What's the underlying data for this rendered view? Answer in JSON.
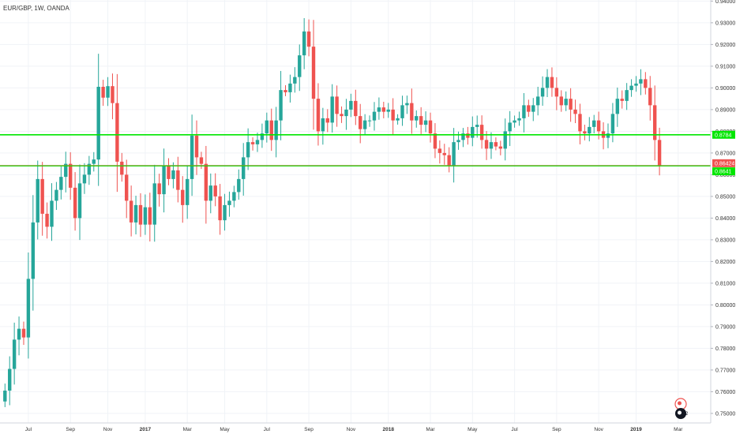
{
  "symbol": "EUR/GBP, 1W, OANDA",
  "colors": {
    "up": "#26a69a",
    "down": "#ef5350",
    "level_line": "#00e600",
    "current_price": "#ef5350",
    "grid": "#f0f3f7"
  },
  "icons": [
    "tradingview-logo-icon"
  ],
  "chart_data": {
    "type": "candlestick",
    "ylim": [
      0.7456,
      0.9405
    ],
    "x_ticks": [
      {
        "label": "Jul",
        "index": 5,
        "bold": false
      },
      {
        "label": "Sep",
        "index": 14,
        "bold": false
      },
      {
        "label": "Nov",
        "index": 22,
        "bold": false
      },
      {
        "label": "2017",
        "index": 30,
        "bold": true
      },
      {
        "label": "Mar",
        "index": 39,
        "bold": false
      },
      {
        "label": "May",
        "index": 47,
        "bold": false
      },
      {
        "label": "Jul",
        "index": 56,
        "bold": false
      },
      {
        "label": "Sep",
        "index": 65,
        "bold": false
      },
      {
        "label": "Nov",
        "index": 74,
        "bold": false
      },
      {
        "label": "2018",
        "index": 82,
        "bold": true
      },
      {
        "label": "Mar",
        "index": 91,
        "bold": false
      },
      {
        "label": "May",
        "index": 100,
        "bold": false
      },
      {
        "label": "Jul",
        "index": 109,
        "bold": false
      },
      {
        "label": "Sep",
        "index": 118,
        "bold": false
      },
      {
        "label": "Nov",
        "index": 127,
        "bold": false
      },
      {
        "label": "2019",
        "index": 135,
        "bold": true
      },
      {
        "label": "Mar",
        "index": 144,
        "bold": false
      }
    ],
    "y_ticks": [
      "0.94000",
      "0.93000",
      "0.92000",
      "0.91000",
      "0.90000",
      "0.89000",
      "0.88000",
      "0.87000",
      "0.86000",
      "0.85000",
      "0.84000",
      "0.83000",
      "0.82000",
      "0.81000",
      "0.80000",
      "0.79000",
      "0.78000",
      "0.77000",
      "0.76000",
      "0.75000"
    ],
    "y_tick_values": [
      0.94,
      0.93,
      0.92,
      0.91,
      0.9,
      0.89,
      0.88,
      0.87,
      0.86,
      0.85,
      0.84,
      0.83,
      0.82,
      0.81,
      0.8,
      0.79,
      0.78,
      0.77,
      0.76,
      0.75
    ],
    "levels": [
      {
        "value": 0.8784,
        "label": "0.8784"
      },
      {
        "value": 0.8641,
        "label": "0.8641"
      }
    ],
    "current_price": {
      "value": 0.8642,
      "label": "0.86424"
    },
    "closes": [
      0.7605,
      0.7705,
      0.784,
      0.789,
      0.785,
      0.812,
      0.838,
      0.858,
      0.842,
      0.836,
      0.848,
      0.853,
      0.859,
      0.865,
      0.854,
      0.84,
      0.856,
      0.86,
      0.865,
      0.867,
      0.9005,
      0.8955,
      0.9008,
      0.893,
      0.866,
      0.86,
      0.848,
      0.838,
      0.846,
      0.837,
      0.845,
      0.837,
      0.856,
      0.851,
      0.864,
      0.858,
      0.862,
      0.853,
      0.846,
      0.858,
      0.878,
      0.868,
      0.865,
      0.848,
      0.855,
      0.85,
      0.839,
      0.846,
      0.848,
      0.852,
      0.858,
      0.868,
      0.875,
      0.874,
      0.876,
      0.879,
      0.885,
      0.876,
      0.885,
      0.899,
      0.898,
      0.902,
      0.905,
      0.915,
      0.926,
      0.919,
      0.895,
      0.88,
      0.886,
      0.884,
      0.896,
      0.888,
      0.887,
      0.89,
      0.894,
      0.887,
      0.881,
      0.885,
      0.885,
      0.889,
      0.891,
      0.889,
      0.89,
      0.885,
      0.886,
      0.892,
      0.893,
      0.885,
      0.887,
      0.883,
      0.885,
      0.879,
      0.872,
      0.87,
      0.869,
      0.864,
      0.875,
      0.876,
      0.879,
      0.877,
      0.882,
      0.883,
      0.876,
      0.872,
      0.875,
      0.873,
      0.872,
      0.88,
      0.884,
      0.885,
      0.886,
      0.892,
      0.889,
      0.892,
      0.896,
      0.9,
      0.905,
      0.9,
      0.896,
      0.892,
      0.895,
      0.89,
      0.888,
      0.88,
      0.879,
      0.882,
      0.885,
      0.88,
      0.877,
      0.879,
      0.888,
      0.895,
      0.894,
      0.899,
      0.901,
      0.902,
      0.904,
      0.9,
      0.892,
      0.876,
      0.8642
    ],
    "opens": [
      0.7555,
      0.7605,
      0.7705,
      0.784,
      0.789,
      0.785,
      0.812,
      0.838,
      0.858,
      0.842,
      0.836,
      0.848,
      0.853,
      0.859,
      0.865,
      0.854,
      0.84,
      0.856,
      0.86,
      0.865,
      0.867,
      0.9005,
      0.8955,
      0.9008,
      0.893,
      0.866,
      0.86,
      0.848,
      0.838,
      0.846,
      0.837,
      0.845,
      0.837,
      0.856,
      0.851,
      0.864,
      0.858,
      0.862,
      0.853,
      0.846,
      0.858,
      0.878,
      0.868,
      0.865,
      0.848,
      0.855,
      0.85,
      0.839,
      0.846,
      0.848,
      0.852,
      0.858,
      0.868,
      0.875,
      0.874,
      0.876,
      0.879,
      0.885,
      0.876,
      0.885,
      0.899,
      0.898,
      0.902,
      0.905,
      0.915,
      0.926,
      0.919,
      0.895,
      0.88,
      0.886,
      0.884,
      0.896,
      0.888,
      0.887,
      0.89,
      0.894,
      0.887,
      0.881,
      0.885,
      0.885,
      0.889,
      0.891,
      0.889,
      0.89,
      0.885,
      0.886,
      0.892,
      0.893,
      0.885,
      0.887,
      0.883,
      0.885,
      0.879,
      0.872,
      0.87,
      0.869,
      0.864,
      0.875,
      0.876,
      0.879,
      0.877,
      0.882,
      0.883,
      0.876,
      0.872,
      0.875,
      0.873,
      0.872,
      0.88,
      0.884,
      0.885,
      0.886,
      0.892,
      0.889,
      0.892,
      0.896,
      0.9,
      0.905,
      0.9,
      0.896,
      0.892,
      0.895,
      0.89,
      0.888,
      0.88,
      0.879,
      0.882,
      0.885,
      0.88,
      0.877,
      0.879,
      0.888,
      0.895,
      0.894,
      0.899,
      0.901,
      0.902,
      0.904,
      0.9,
      0.892,
      0.876
    ]
  }
}
